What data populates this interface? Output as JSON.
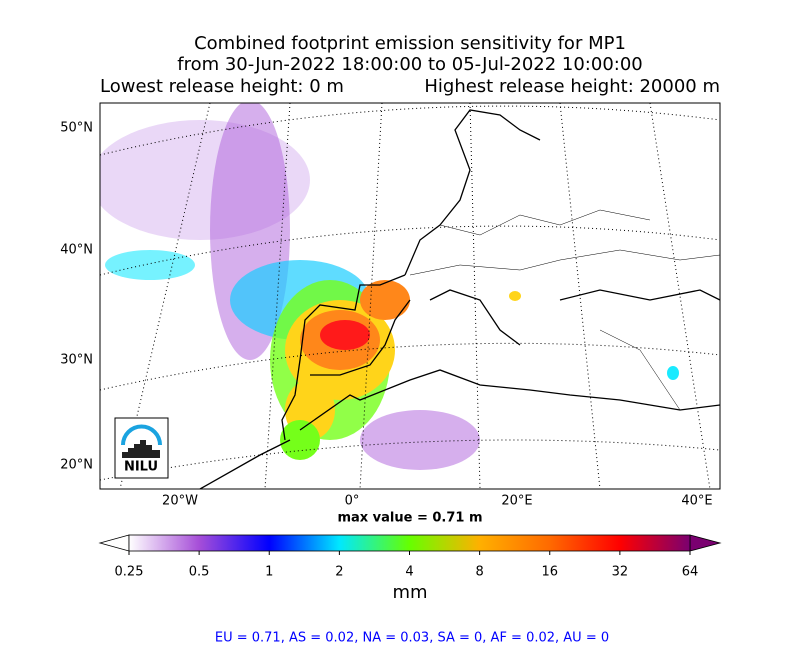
{
  "header": {
    "title_lines": [
      "Combined footprint emission sensitivity for MP1",
      "from 30-Jun-2022 18:00:00 to 05-Jul-2022 10:00:00"
    ],
    "release_low": "Lowest release height: 0 m",
    "release_high": "Highest release height: 20000 m"
  },
  "map": {
    "lat_labels": [
      "50°N",
      "40°N",
      "30°N",
      "20°N"
    ],
    "lon_labels": [
      "20°W",
      "0°",
      "20°E",
      "40°E"
    ],
    "logo": "NILU",
    "max_value": "max value = 0.71 m"
  },
  "colorbar": {
    "scale": "log",
    "lim": [
      0.25,
      64
    ],
    "ticks": [
      0.25,
      0.5,
      1,
      2,
      4,
      8,
      16,
      32,
      64
    ],
    "colors": [
      "#ffffff",
      "#a64ed8",
      "#0000ff",
      "#00e8ff",
      "#66ff00",
      "#ffb000",
      "#ff6a00",
      "#ff0000",
      "#7a0070"
    ],
    "unit": "mm"
  },
  "footer": "EU = 0.71,  AS = 0.02,  NA = 0.03,  SA = 0,  AF = 0.02,  AU = 0"
}
